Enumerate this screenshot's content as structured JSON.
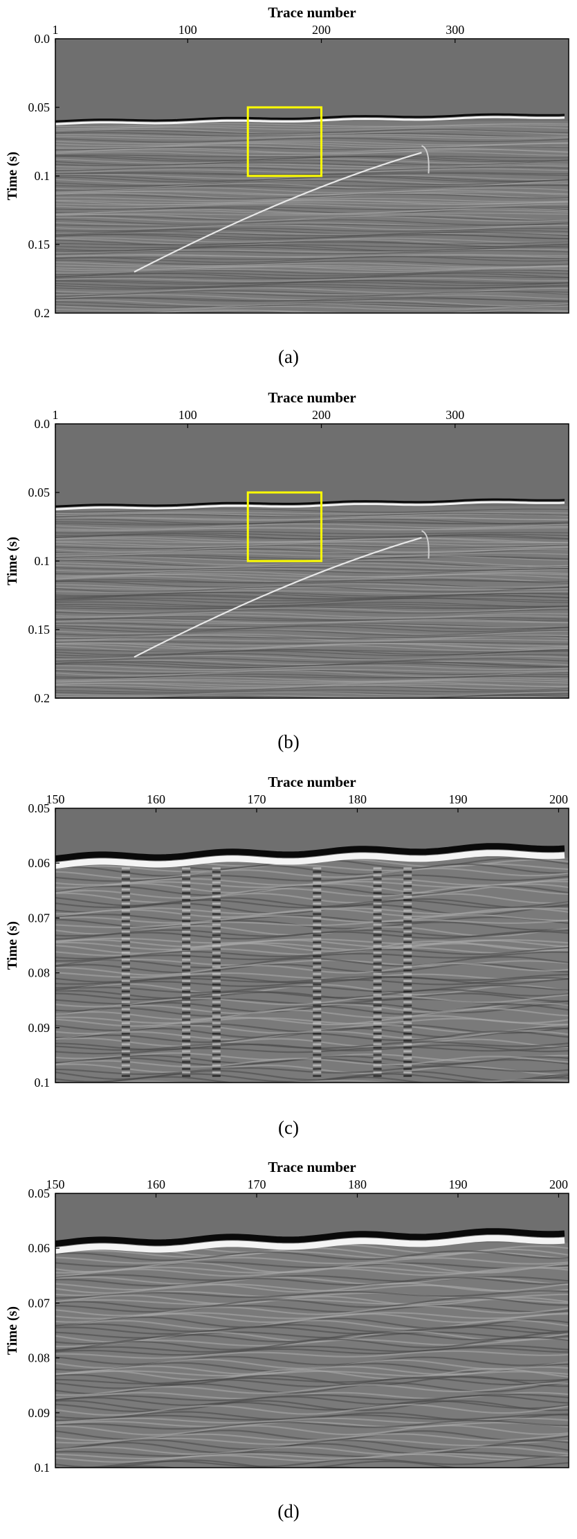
{
  "panels": [
    {
      "caption": "(a)",
      "chart_data": {
        "type": "heatmap",
        "content": "seismic section",
        "xlabel": "Trace number",
        "ylabel": "Time (s)",
        "xticks": [
          1,
          100,
          200,
          300
        ],
        "xlim": [
          1,
          385
        ],
        "ylim": [
          0.0,
          0.2
        ],
        "y_axis_reversed": true,
        "yticks": [
          {
            "value": 0.0,
            "label": "0.0"
          },
          {
            "value": 0.05,
            "label": "0.05"
          },
          {
            "value": 0.1,
            "label": "0.1"
          },
          {
            "value": 0.15,
            "label": "0.15"
          },
          {
            "value": 0.2,
            "label": "0.2"
          }
        ],
        "first_break_time": 0.06,
        "highlight_box": {
          "x": [
            145,
            200
          ],
          "y": [
            0.05,
            0.1
          ],
          "color": "#ffff00"
        },
        "colormap": "gray"
      }
    },
    {
      "caption": "(b)",
      "chart_data": {
        "type": "heatmap",
        "content": "seismic section",
        "xlabel": "Trace number",
        "ylabel": "Time (s)",
        "xticks": [
          1,
          100,
          200,
          300
        ],
        "xlim": [
          1,
          385
        ],
        "ylim": [
          0.0,
          0.2
        ],
        "y_axis_reversed": true,
        "yticks": [
          {
            "value": 0.0,
            "label": "0.0"
          },
          {
            "value": 0.05,
            "label": "0.05"
          },
          {
            "value": 0.1,
            "label": "0.1"
          },
          {
            "value": 0.15,
            "label": "0.15"
          },
          {
            "value": 0.2,
            "label": "0.2"
          }
        ],
        "first_break_time": 0.06,
        "highlight_box": {
          "x": [
            145,
            200
          ],
          "y": [
            0.05,
            0.1
          ],
          "color": "#ffff00"
        },
        "colormap": "gray"
      }
    },
    {
      "caption": "(c)",
      "chart_data": {
        "type": "heatmap",
        "content": "zoomed seismic section",
        "xlabel": "Trace number",
        "ylabel": "Time (s)",
        "xticks": [
          150,
          160,
          170,
          180,
          190,
          200
        ],
        "xlim": [
          150,
          201
        ],
        "ylim": [
          0.05,
          0.1
        ],
        "y_axis_reversed": true,
        "yticks": [
          {
            "value": 0.05,
            "label": "0.05"
          },
          {
            "value": 0.06,
            "label": "0.06"
          },
          {
            "value": 0.07,
            "label": "0.07"
          },
          {
            "value": 0.08,
            "label": "0.08"
          },
          {
            "value": 0.09,
            "label": "0.09"
          },
          {
            "value": 0.1,
            "label": "0.1"
          }
        ],
        "first_break_time": 0.059,
        "vertical_noise": true,
        "colormap": "gray"
      }
    },
    {
      "caption": "(d)",
      "chart_data": {
        "type": "heatmap",
        "content": "zoomed seismic section",
        "xlabel": "Trace number",
        "ylabel": "Time (s)",
        "xticks": [
          150,
          160,
          170,
          180,
          190,
          200
        ],
        "xlim": [
          150,
          201
        ],
        "ylim": [
          0.05,
          0.1
        ],
        "y_axis_reversed": true,
        "yticks": [
          {
            "value": 0.05,
            "label": "0.05"
          },
          {
            "value": 0.06,
            "label": "0.06"
          },
          {
            "value": 0.07,
            "label": "0.07"
          },
          {
            "value": 0.08,
            "label": "0.08"
          },
          {
            "value": 0.09,
            "label": "0.09"
          },
          {
            "value": 0.1,
            "label": "0.1"
          }
        ],
        "first_break_time": 0.059,
        "vertical_noise": false,
        "colormap": "gray"
      }
    }
  ]
}
